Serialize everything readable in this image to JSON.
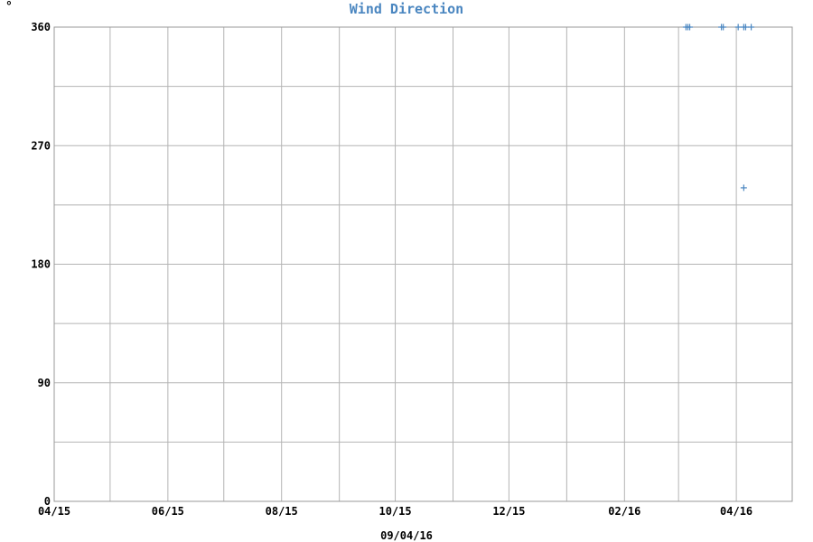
{
  "chart_data": {
    "type": "scatter",
    "title": "Wind Direction",
    "ylabel": "°",
    "xlabel": "09/04/16",
    "x_range": [
      "2015-04-01",
      "2016-05-01"
    ],
    "ylim": [
      0,
      360
    ],
    "y_gridlines": [
      0,
      45,
      90,
      135,
      180,
      225,
      270,
      315,
      360
    ],
    "y_tick_labels": [
      "0",
      "90",
      "180",
      "270",
      "360"
    ],
    "x_gridlines": [
      "2015-04-01",
      "2015-05-01",
      "2015-06-01",
      "2015-07-01",
      "2015-08-01",
      "2015-09-01",
      "2015-10-01",
      "2015-11-01",
      "2015-12-01",
      "2016-01-01",
      "2016-02-01",
      "2016-03-01",
      "2016-04-01",
      "2016-05-01"
    ],
    "x_tick_labels": [
      {
        "date": "2015-04-01",
        "label": "04/15"
      },
      {
        "date": "2015-06-01",
        "label": "06/15"
      },
      {
        "date": "2015-08-01",
        "label": "08/15"
      },
      {
        "date": "2015-10-01",
        "label": "10/15"
      },
      {
        "date": "2015-12-01",
        "label": "12/15"
      },
      {
        "date": "2016-02-01",
        "label": "02/16"
      },
      {
        "date": "2016-04-01",
        "label": "04/16"
      }
    ],
    "grid": true,
    "marker": "plus",
    "series": [
      {
        "color": "#4a86c0",
        "points": [
          {
            "x": "2016-03-05",
            "y": 360
          },
          {
            "x": "2016-03-06",
            "y": 360
          },
          {
            "x": "2016-03-07",
            "y": 360
          },
          {
            "x": "2016-03-24",
            "y": 360
          },
          {
            "x": "2016-03-25",
            "y": 360
          },
          {
            "x": "2016-04-02",
            "y": 360
          },
          {
            "x": "2016-04-05",
            "y": 360
          },
          {
            "x": "2016-04-06",
            "y": 360
          },
          {
            "x": "2016-04-09",
            "y": 360
          },
          {
            "x": "2016-04-05",
            "y": 238
          }
        ]
      }
    ]
  }
}
